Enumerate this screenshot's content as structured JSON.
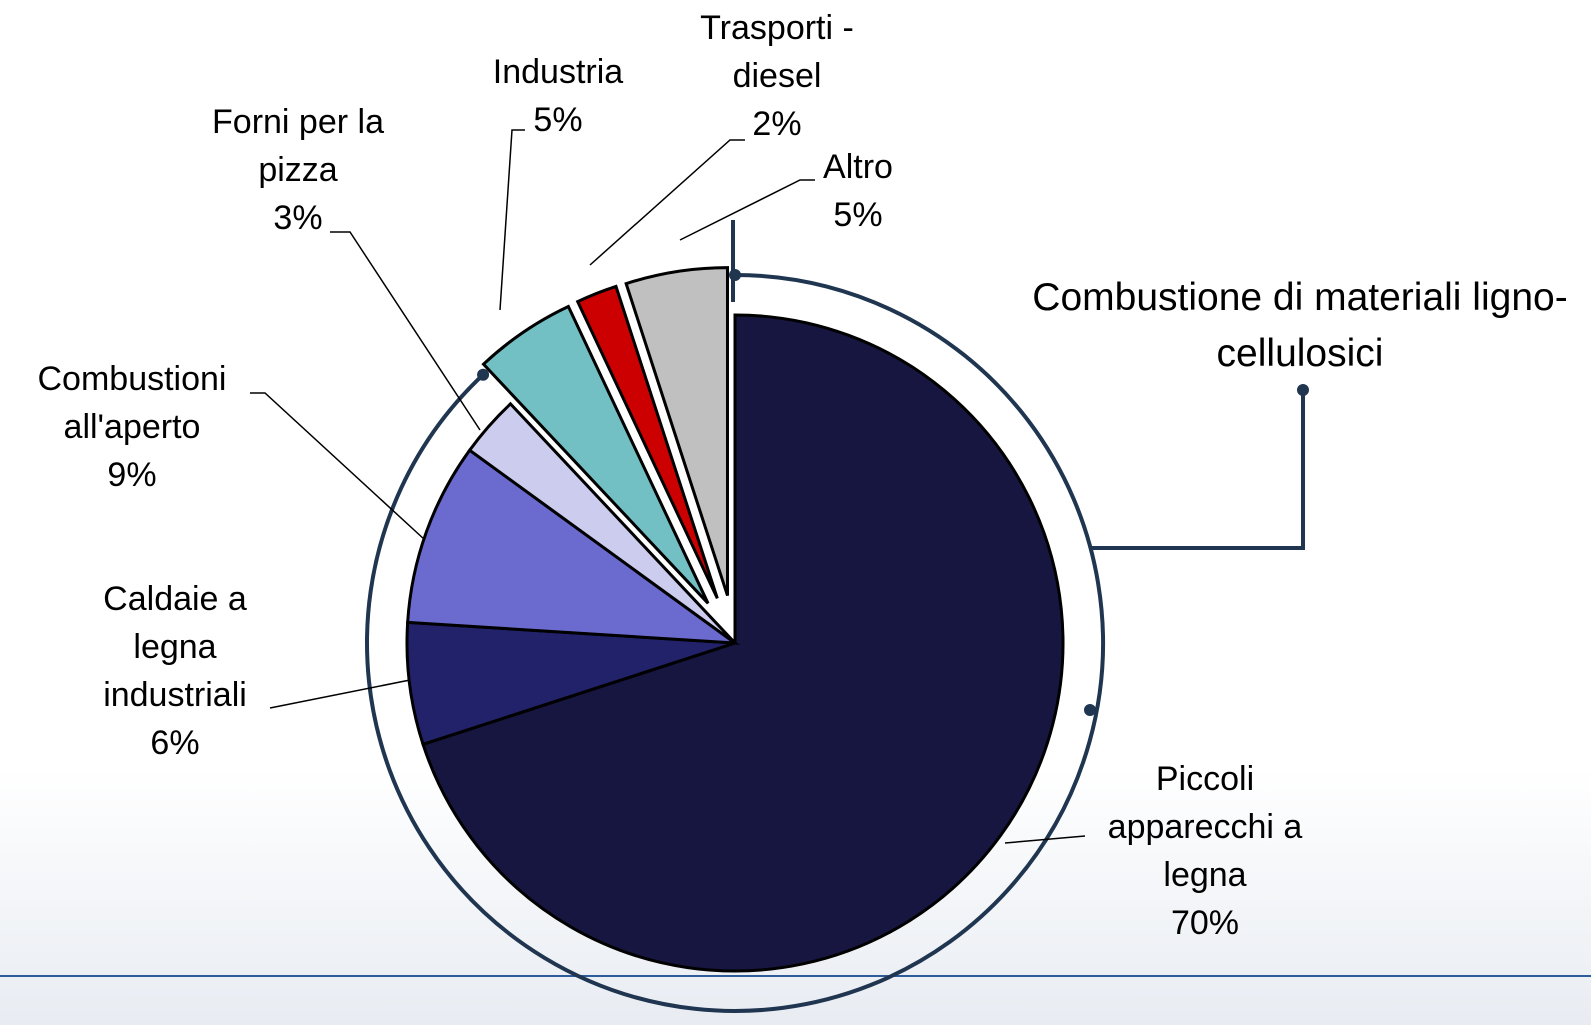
{
  "chart_data": {
    "type": "pie",
    "categories": [
      "Piccoli apparecchi a legna",
      "Caldaie a legna industriali",
      "Combustioni all'aperto",
      "Forni per la pizza",
      "Industria",
      "Trasporti - diesel",
      "Altro"
    ],
    "values": [
      70,
      6,
      9,
      3,
      5,
      2,
      5
    ],
    "value_labels": [
      "70%",
      "6%",
      "9%",
      "3%",
      "5%",
      "2%",
      "5%"
    ],
    "colors": [
      "#161640",
      "#22226a",
      "#6b6bcf",
      "#ccccee",
      "#72bfc4",
      "#cc0000",
      "#c0c0c0"
    ],
    "explode": [
      false,
      false,
      false,
      false,
      true,
      true,
      true
    ],
    "annotation": "Combustione di materiali ligno-cellulosici"
  }
}
